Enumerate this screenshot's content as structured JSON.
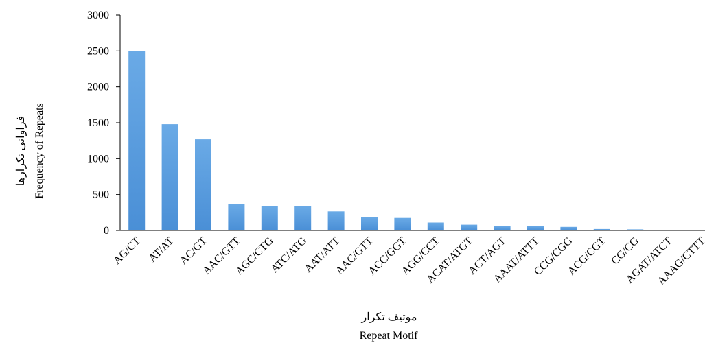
{
  "chart_data": {
    "type": "bar",
    "categories": [
      "AG/CT",
      "AT/AT",
      "AC/GT",
      "AAC/GTT",
      "AGC/CTG",
      "ATC/ATG",
      "AAT/ATT",
      "AAC/GTT",
      "ACC/GGT",
      "AGG/CCT",
      "ACAT/ATGT",
      "ACT/AGT",
      "AAAT/ATTT",
      "CCG/CGG",
      "ACG/CGT",
      "CG/CG",
      "AGAT/ATCT",
      "AAAG/CTTT"
    ],
    "values": [
      2500,
      1480,
      1270,
      370,
      340,
      340,
      265,
      185,
      175,
      110,
      80,
      60,
      60,
      50,
      20,
      15,
      5,
      5
    ],
    "ylim": [
      0,
      3000
    ],
    "yticks": [
      0,
      500,
      1000,
      1500,
      2000,
      2500,
      3000
    ],
    "ylabel_fa": "فراوانی تکرارها",
    "ylabel_en": "Frequency of Repeats",
    "xlabel_fa": "موتیف تکرار",
    "xlabel_en": "Repeat Motif",
    "colors": {
      "bar": "#4a8fd6",
      "bar_light": "#6aaae6",
      "axis": "#000000"
    },
    "grid": false,
    "legend": "none"
  }
}
